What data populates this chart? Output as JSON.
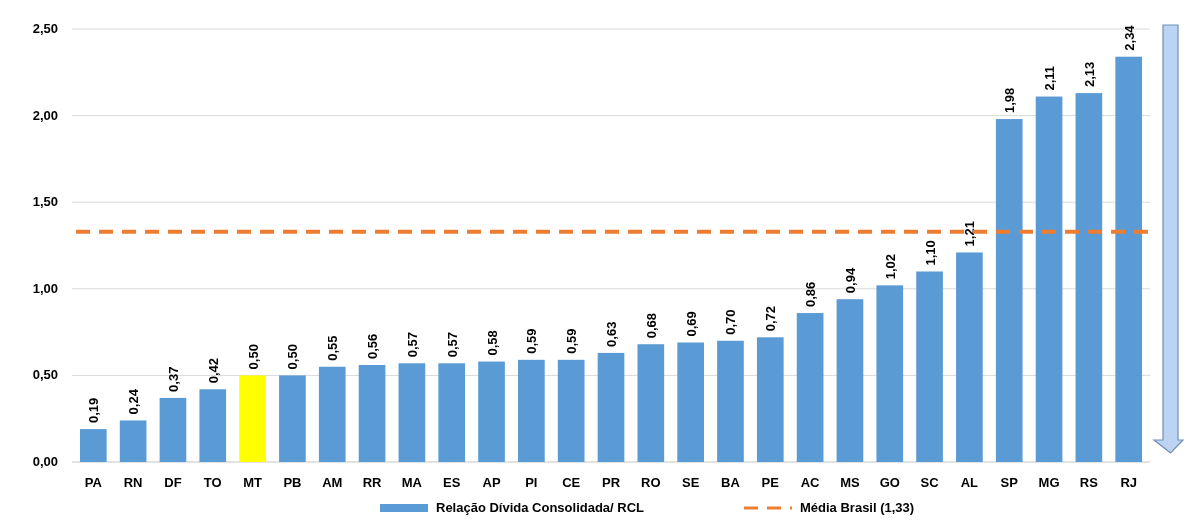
{
  "chart_data": {
    "type": "bar",
    "categories": [
      "PA",
      "RN",
      "DF",
      "TO",
      "MT",
      "PB",
      "AM",
      "RR",
      "MA",
      "ES",
      "AP",
      "PI",
      "CE",
      "PR",
      "RO",
      "SE",
      "BA",
      "PE",
      "AC",
      "MS",
      "GO",
      "SC",
      "AL",
      "SP",
      "MG",
      "RS",
      "RJ"
    ],
    "series": [
      {
        "name": "Relação Dívida Consolidada/ RCL",
        "color": "#5b9bd5",
        "colors": [
          "#5b9bd5",
          "#5b9bd5",
          "#5b9bd5",
          "#5b9bd5",
          "#ffff00",
          "#5b9bd5",
          "#5b9bd5",
          "#5b9bd5",
          "#5b9bd5",
          "#5b9bd5",
          "#5b9bd5",
          "#5b9bd5",
          "#5b9bd5",
          "#5b9bd5",
          "#5b9bd5",
          "#5b9bd5",
          "#5b9bd5",
          "#5b9bd5",
          "#5b9bd5",
          "#5b9bd5",
          "#5b9bd5",
          "#5b9bd5",
          "#5b9bd5",
          "#5b9bd5",
          "#5b9bd5",
          "#5b9bd5",
          "#5b9bd5"
        ],
        "values": [
          0.19,
          0.24,
          0.37,
          0.42,
          0.5,
          0.5,
          0.55,
          0.56,
          0.57,
          0.57,
          0.58,
          0.59,
          0.59,
          0.63,
          0.68,
          0.69,
          0.7,
          0.72,
          0.86,
          0.94,
          1.02,
          1.1,
          1.21,
          1.98,
          2.11,
          2.13,
          2.34
        ],
        "value_labels": [
          "0,19",
          "0,24",
          "0,37",
          "0,42",
          "0,50",
          "0,50",
          "0,55",
          "0,56",
          "0,57",
          "0,57",
          "0,58",
          "0,59",
          "0,59",
          "0,63",
          "0,68",
          "0,69",
          "0,70",
          "0,72",
          "0,86",
          "0,94",
          "1,02",
          "1,10",
          "1,21",
          "1,98",
          "2,11",
          "2,13",
          "2,34"
        ]
      }
    ],
    "ylim": [
      0,
      2.5
    ],
    "yticks": [
      {
        "value": 0,
        "label": "0,00"
      },
      {
        "value": 0.5,
        "label": "0,50"
      },
      {
        "value": 1,
        "label": "1,00"
      },
      {
        "value": 1.5,
        "label": "1,50"
      },
      {
        "value": 2,
        "label": "2,00"
      },
      {
        "value": 2.5,
        "label": "2,50"
      }
    ],
    "ref_lines": [
      {
        "axis": "y",
        "value": 1.33,
        "label": "Média Brasil (1,33)",
        "color": "#ed7d31",
        "line_style": "dashed"
      }
    ],
    "grid": "y",
    "legend": "bottom"
  }
}
